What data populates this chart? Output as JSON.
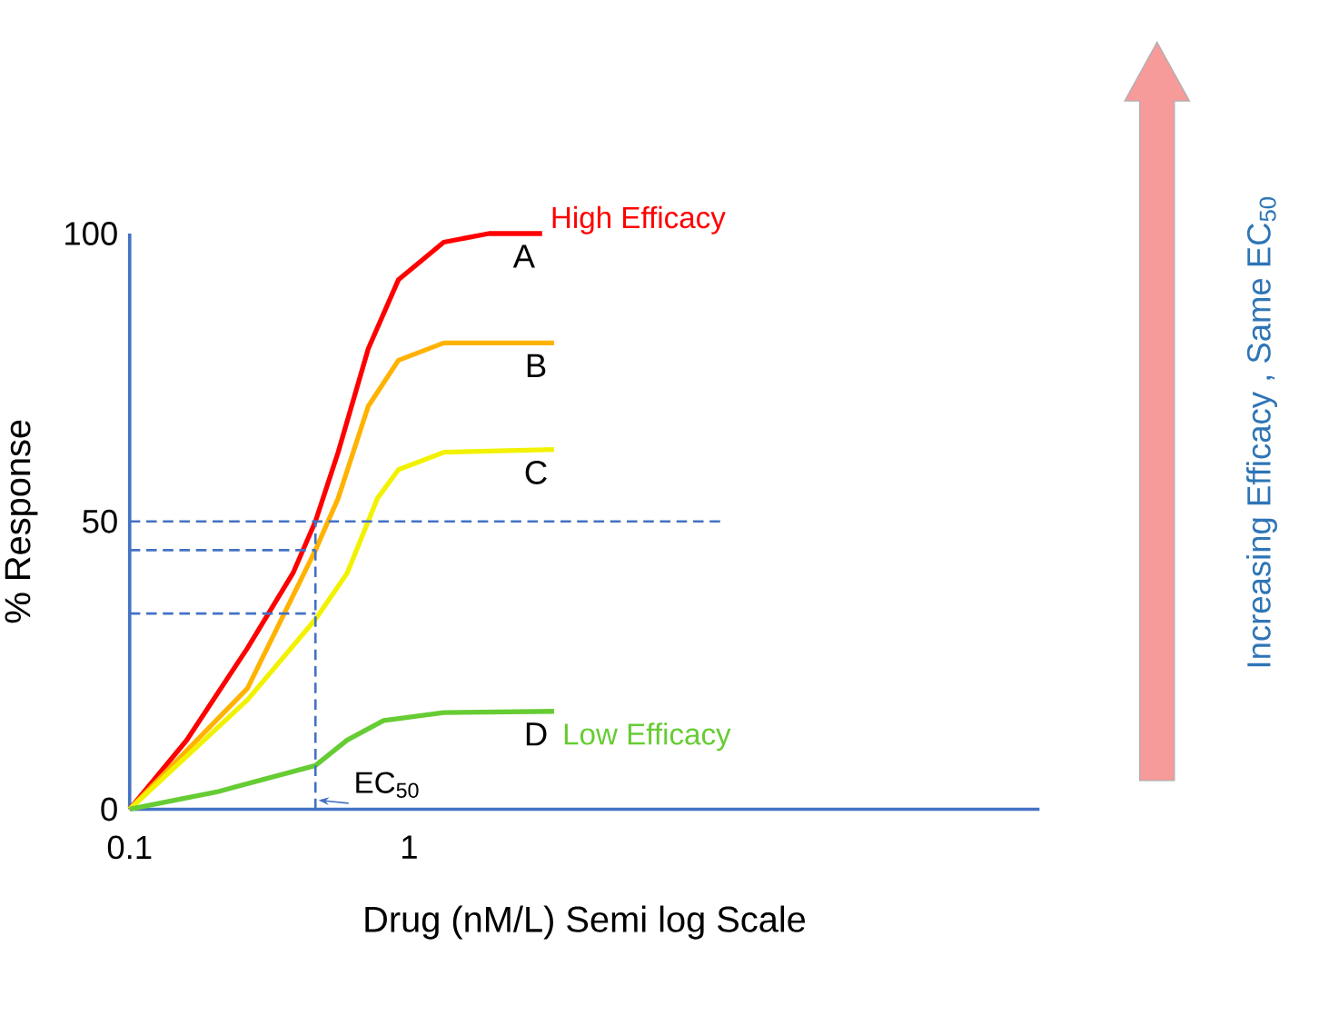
{
  "chart_data": {
    "type": "line",
    "xlabel": "Drug (nM/L) Semi log Scale",
    "ylabel": "% Response",
    "log": "x",
    "xlim": [
      0.1,
      180
    ],
    "ylim": [
      0,
      100
    ],
    "xticks": [
      0.1,
      1
    ],
    "yticks": [
      0,
      50,
      100
    ],
    "grid": false,
    "legend": false,
    "marker": "none",
    "line_style": "solid",
    "x": [
      0.1,
      0.16,
      0.264,
      0.384,
      0.462,
      0.557,
      0.714,
      0.916,
      1.33,
      1.93,
      2.99
    ],
    "series": [
      {
        "name": "A",
        "color": "#ff0000",
        "values": [
          0,
          12,
          28,
          41,
          50,
          62,
          80,
          92,
          98.5,
          100,
          100
        ]
      },
      {
        "name": "B",
        "color": "#ffb300",
        "x": [
          0.1,
          0.264,
          0.462,
          0.557,
          0.714,
          0.916,
          1.33,
          3.3
        ],
        "values": [
          0,
          21,
          45,
          54,
          70,
          78,
          81,
          81
        ]
      },
      {
        "name": "C",
        "color": "#f2f200",
        "x": [
          0.1,
          0.264,
          0.462,
          0.6,
          0.77,
          0.916,
          1.33,
          3.3
        ],
        "values": [
          0,
          19,
          33,
          41,
          54,
          59,
          62,
          62.5
        ]
      },
      {
        "name": "D",
        "color": "#66cc33",
        "x": [
          0.1,
          0.205,
          0.462,
          0.6,
          0.81,
          1.33,
          3.3
        ],
        "values": [
          0,
          3,
          7.6,
          12,
          15.4,
          16.8,
          17
        ]
      }
    ],
    "ref_lines": [
      {
        "axis": "y",
        "value": 50,
        "color": "#4472c4",
        "line_style": "dashed"
      },
      {
        "axis": "y",
        "value": 45,
        "color": "#4472c4",
        "line_style": "dashed"
      },
      {
        "axis": "y",
        "value": 34,
        "color": "#4472c4",
        "line_style": "dashed"
      },
      {
        "axis": "x",
        "value": 0.462,
        "label": "EC$_{50}$",
        "color": "#4472c4",
        "line_style": "dashed"
      }
    ],
    "annotations": [
      "High Efficacy",
      "Low Efficacy",
      "Increasing Efficacy , Same EC$_{50}$"
    ]
  }
}
